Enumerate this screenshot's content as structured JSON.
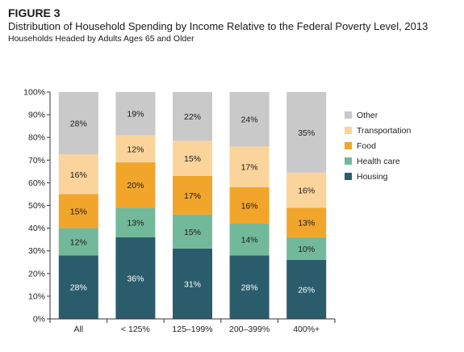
{
  "figure_label": "FIGURE 3",
  "title": "Distribution of Household Spending by Income Relative to the Federal Poverty Level, 2013",
  "subtitle": "Households Headed by Adults Ages 65 and Older",
  "chart_data": {
    "type": "bar",
    "stacked": true,
    "categories": [
      "All",
      "< 125%",
      "125–199%",
      "200–399%",
      "400%+"
    ],
    "series": [
      {
        "name": "Housing",
        "color": "#2a5c6b",
        "label_color": "#ffffff",
        "values": [
          28,
          36,
          31,
          28,
          26
        ]
      },
      {
        "name": "Health care",
        "color": "#72b99b",
        "label_color": "#1a1a1a",
        "values": [
          12,
          13,
          15,
          14,
          10
        ]
      },
      {
        "name": "Food",
        "color": "#f1a52b",
        "label_color": "#1a1a1a",
        "values": [
          15,
          20,
          17,
          16,
          13
        ]
      },
      {
        "name": "Transportation",
        "color": "#fbd49c",
        "label_color": "#1a1a1a",
        "values": [
          16,
          12,
          15,
          17,
          16
        ]
      },
      {
        "name": "Other",
        "color": "#c9c9c9",
        "label_color": "#1a1a1a",
        "values": [
          28,
          19,
          22,
          24,
          35
        ]
      }
    ],
    "bar_tops": [
      72.5,
      81,
      78.5,
      76,
      64.5
    ],
    "ylim": [
      0,
      100
    ],
    "yticks": [
      "0%",
      "10%",
      "20%",
      "30%",
      "40%",
      "50%",
      "60%",
      "70%",
      "80%",
      "90%",
      "100%"
    ],
    "background_color": "#eeeeee",
    "grid": false,
    "legend_position": "right"
  }
}
